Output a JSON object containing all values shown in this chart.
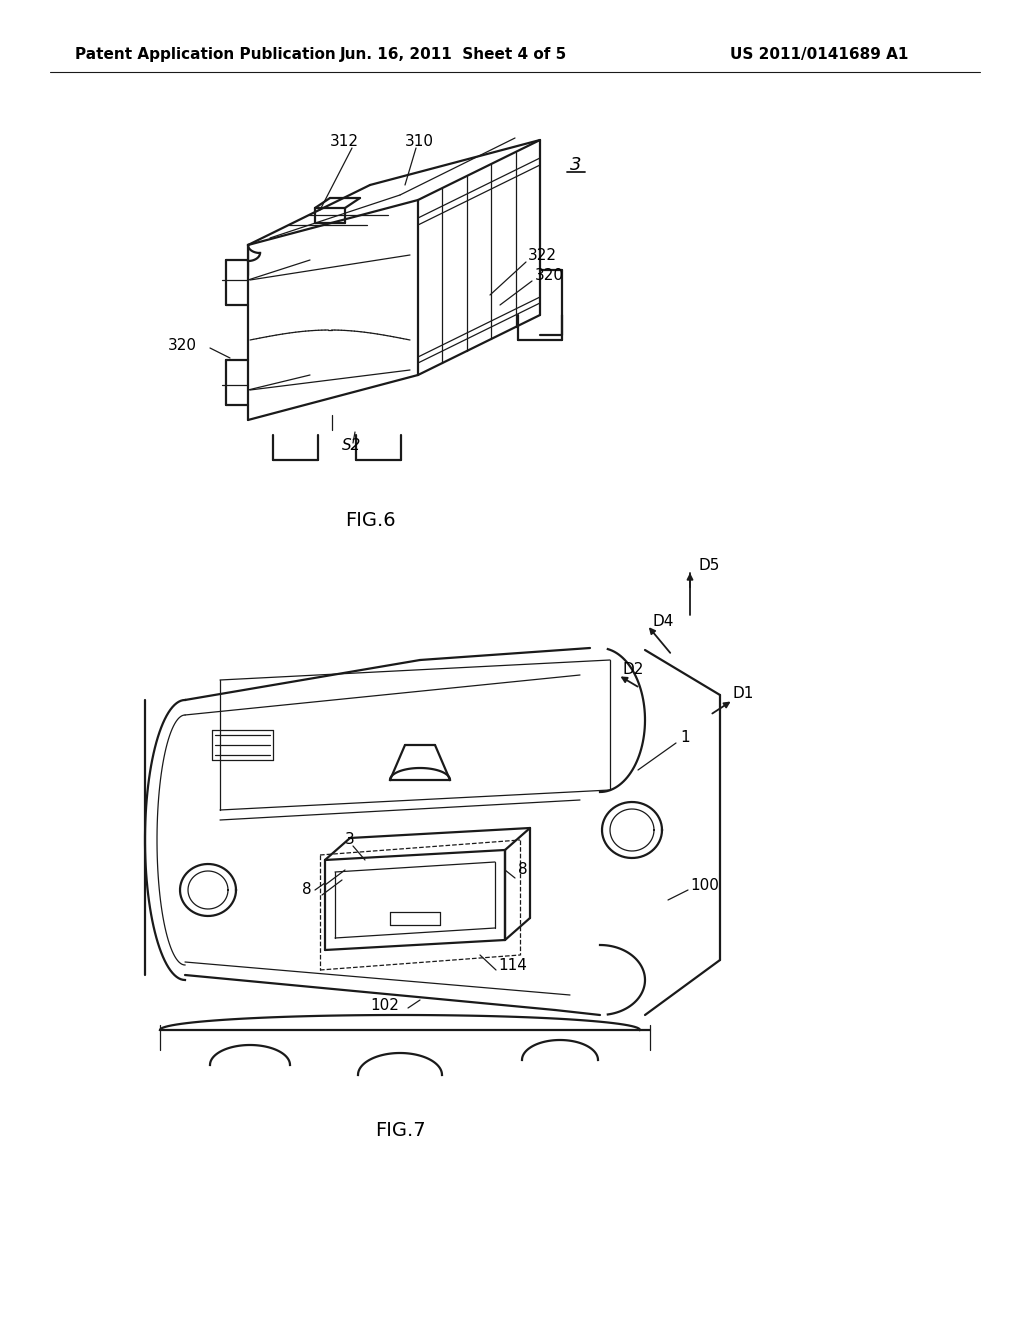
{
  "bg_color": "#ffffff",
  "header_left": "Patent Application Publication",
  "header_center": "Jun. 16, 2011  Sheet 4 of 5",
  "header_right": "US 2011/0141689 A1",
  "fig6_label": "FIG.6",
  "fig7_label": "FIG.7",
  "line_color": "#1a1a1a",
  "text_color": "#000000",
  "header_fontsize": 11,
  "label_fontsize": 11,
  "fig_label_fontsize": 14,
  "lw_main": 1.6,
  "lw_thin": 0.9
}
